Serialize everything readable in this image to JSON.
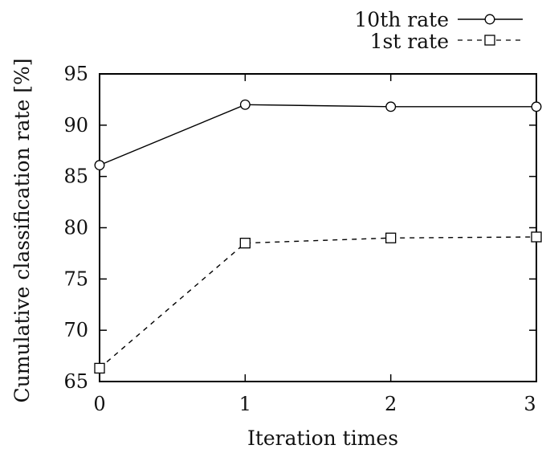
{
  "chart_data": {
    "type": "line",
    "x": [
      0,
      1,
      2,
      3
    ],
    "xlabel": "Iteration times",
    "ylabel": "Cumulative classification rate [%]",
    "xlim": [
      0,
      3
    ],
    "ylim": [
      65,
      95
    ],
    "xticks": [
      "0",
      "1",
      "2",
      "3"
    ],
    "yticks": [
      "65",
      "70",
      "75",
      "80",
      "85",
      "90",
      "95"
    ],
    "grid": false,
    "legend_position": "top-right",
    "series": [
      {
        "name": "10th rate",
        "values": [
          86.1,
          92.0,
          91.8,
          91.8
        ],
        "marker": "circle",
        "line_style": "solid",
        "color": "#000000"
      },
      {
        "name": "1st rate",
        "values": [
          66.3,
          78.5,
          79.0,
          79.1
        ],
        "marker": "square",
        "line_style": "dashed",
        "color": "#000000"
      }
    ]
  }
}
